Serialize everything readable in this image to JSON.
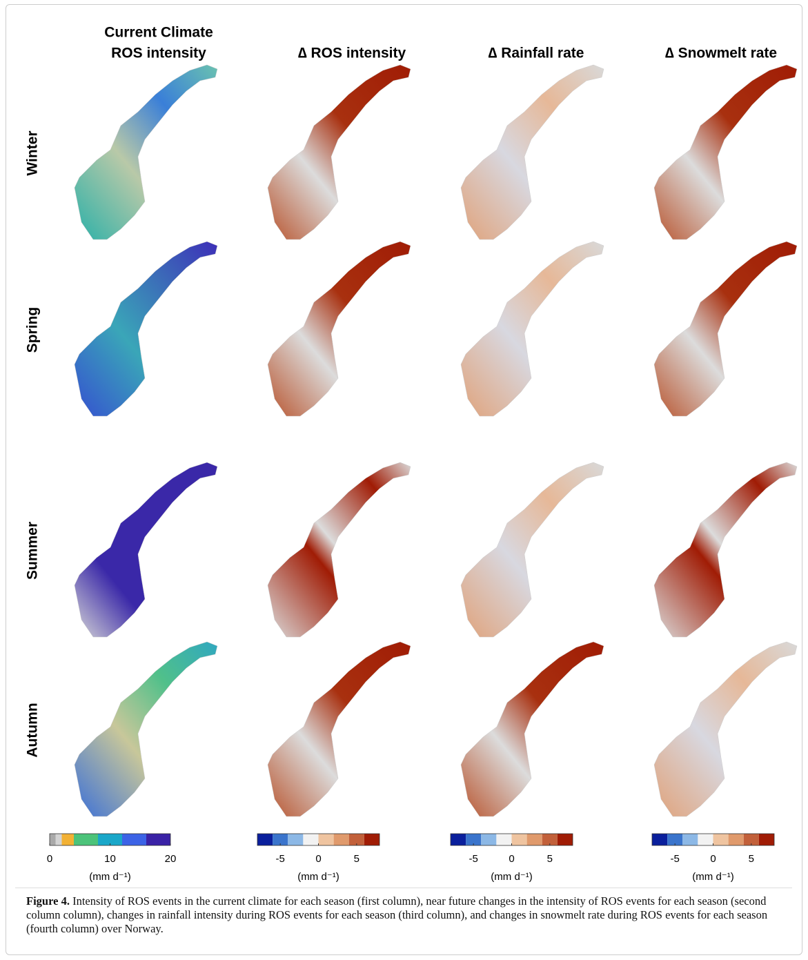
{
  "figure": {
    "column_titles": [
      [
        "Current Climate",
        "ROS intensity"
      ],
      [
        "∆ ROS intensity"
      ],
      [
        "∆ Rainfall rate"
      ],
      [
        "∆ Snowmelt rate"
      ]
    ],
    "row_labels": [
      "Winter",
      "Spring",
      "Summer",
      "Autumn"
    ],
    "colorbars": [
      {
        "lim": [
          0,
          20
        ],
        "bounds": [
          0,
          1,
          2,
          4,
          8,
          12,
          16,
          20
        ],
        "colors": [
          "#a9a9a9",
          "#d3d3d3",
          "#f2b134",
          "#4cc37a",
          "#1aa7c9",
          "#3c63e6",
          "#3a22a6"
        ],
        "ticks": [
          0,
          10,
          20
        ],
        "unit_label": "(mm d⁻¹)"
      },
      {
        "lim": [
          -8,
          8
        ],
        "bounds": [
          -8,
          -6,
          -4,
          -2,
          0,
          2,
          4,
          6,
          8
        ],
        "colors": [
          "#0a1f9c",
          "#3a74cc",
          "#8cb8e6",
          "#f2f2f2",
          "#efc4a0",
          "#e09a6c",
          "#c2603a",
          "#a01c05"
        ],
        "ticks": [
          -5,
          0,
          5
        ],
        "unit_label": "(mm d⁻¹)"
      },
      {
        "lim": [
          -8,
          8
        ],
        "bounds": [
          -8,
          -6,
          -4,
          -2,
          0,
          2,
          4,
          6,
          8
        ],
        "colors": [
          "#0a1f9c",
          "#3a74cc",
          "#8cb8e6",
          "#f2f2f2",
          "#efc4a0",
          "#e09a6c",
          "#c2603a",
          "#a01c05"
        ],
        "ticks": [
          -5,
          0,
          5
        ],
        "unit_label": "(mm d⁻¹)"
      },
      {
        "lim": [
          -8,
          8
        ],
        "bounds": [
          -8,
          -6,
          -4,
          -2,
          0,
          2,
          4,
          6,
          8
        ],
        "colors": [
          "#0a1f9c",
          "#3a74cc",
          "#8cb8e6",
          "#f2f2f2",
          "#efc4a0",
          "#e09a6c",
          "#c2603a",
          "#a01c05"
        ],
        "ticks": [
          -5,
          0,
          5
        ],
        "unit_label": "(mm d⁻¹)"
      }
    ]
  },
  "caption": {
    "label": "Figure 4.",
    "text": "Intensity of ROS events in the current climate for each season (first column), near future changes in the intensity of ROS events for each season (second column column), changes in rainfall intensity during ROS events for each season (third column), and changes in snowmelt rate during ROS events for each season (fourth column) over Norway."
  }
}
